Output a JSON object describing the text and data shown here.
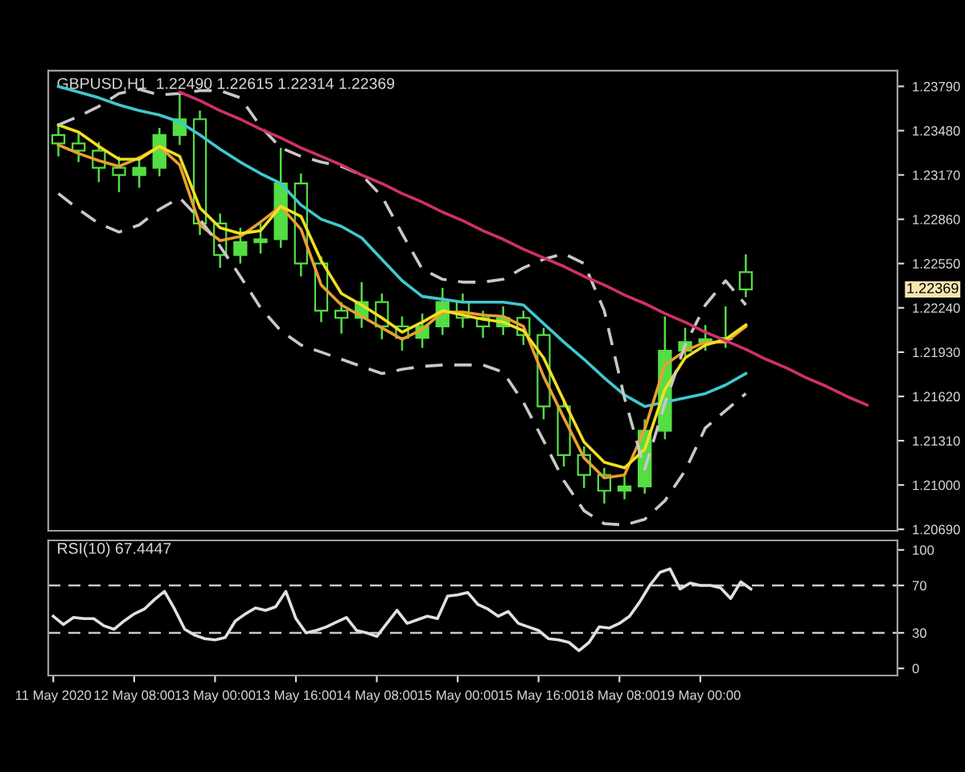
{
  "chart_data": [
    {
      "type": "candlestick",
      "title": "GBPUSD,H1  1.22490 1.22615 1.22314 1.22369",
      "categories": [
        null,
        null,
        null,
        null,
        null,
        null,
        null,
        null,
        null,
        null,
        null,
        null,
        null,
        null,
        null,
        null,
        null,
        null,
        null,
        null,
        null,
        null,
        null,
        null,
        null,
        null,
        null,
        null,
        null,
        null,
        null,
        null,
        null,
        null,
        null,
        null,
        null,
        null,
        null,
        null,
        null,
        null
      ],
      "ylim": [
        1.2068,
        1.239
      ],
      "yticks": [
        {
          "value": 1.2379,
          "label": "1.23790"
        },
        {
          "value": 1.2348,
          "label": "1.23480"
        },
        {
          "value": 1.2317,
          "label": "1.23170"
        },
        {
          "value": 1.2286,
          "label": "1.22860"
        },
        {
          "value": 1.2255,
          "label": "1.22550"
        },
        {
          "value": 1.2224,
          "label": "1.22240"
        },
        {
          "value": 1.2193,
          "label": "1.21930"
        },
        {
          "value": 1.2162,
          "label": "1.21620"
        },
        {
          "value": 1.2131,
          "label": "1.21310"
        },
        {
          "value": 1.21,
          "label": "1.21000"
        },
        {
          "value": 1.2069,
          "label": "1.20690"
        }
      ],
      "tick_labels": "y",
      "grid": false,
      "legend": false,
      "annotations": [
        "1.22369"
      ],
      "series": [
        {
          "color": "#55dd44",
          "ohlc": [
            [
              1.2345,
              1.2352,
              1.233,
              1.2339
            ],
            [
              1.2339,
              1.2346,
              1.2326,
              1.2334
            ],
            [
              1.2334,
              1.234,
              1.2312,
              1.2322
            ],
            [
              1.2322,
              1.233,
              1.2305,
              1.2317
            ],
            [
              1.2317,
              1.233,
              1.2308,
              1.2322
            ],
            [
              1.2322,
              1.235,
              1.2316,
              1.2345
            ],
            [
              1.2345,
              1.2373,
              1.2338,
              1.2356
            ],
            [
              1.2356,
              1.2362,
              1.2275,
              1.2283
            ],
            [
              1.2283,
              1.229,
              1.2252,
              1.2261
            ],
            [
              1.2261,
              1.228,
              1.2255,
              1.227
            ],
            [
              1.227,
              1.2283,
              1.2262,
              1.2272
            ],
            [
              1.2272,
              1.2336,
              1.2266,
              1.2311
            ],
            [
              1.2311,
              1.2318,
              1.2246,
              1.2255
            ],
            [
              1.2255,
              1.226,
              1.2214,
              1.2222
            ],
            [
              1.2222,
              1.2228,
              1.2206,
              1.2217
            ],
            [
              1.2217,
              1.2242,
              1.221,
              1.2228
            ],
            [
              1.2228,
              1.2234,
              1.2202,
              1.2211
            ],
            [
              1.2211,
              1.2218,
              1.2194,
              1.2203
            ],
            [
              1.2203,
              1.222,
              1.2196,
              1.2211
            ],
            [
              1.2211,
              1.2238,
              1.2205,
              1.2228
            ],
            [
              1.2228,
              1.2234,
              1.221,
              1.2217
            ],
            [
              1.2217,
              1.2222,
              1.2203,
              1.2211
            ],
            [
              1.2211,
              1.2225,
              1.2205,
              1.2217
            ],
            [
              1.2217,
              1.2222,
              1.2198,
              1.2205
            ],
            [
              1.2205,
              1.221,
              1.2146,
              1.2155
            ],
            [
              1.2155,
              1.216,
              1.2113,
              1.2121
            ],
            [
              1.2121,
              1.2127,
              1.2098,
              1.2107
            ],
            [
              1.2107,
              1.2112,
              1.2087,
              1.2096
            ],
            [
              1.2096,
              1.2106,
              1.209,
              1.2099
            ],
            [
              1.2099,
              1.2146,
              1.2094,
              1.2138
            ],
            [
              1.2138,
              1.2218,
              1.2132,
              1.2194
            ],
            [
              1.2194,
              1.221,
              1.219,
              1.22
            ],
            [
              1.22,
              1.2212,
              1.2194,
              1.2202
            ],
            [
              1.2202,
              1.2225,
              1.2196,
              1.2203
            ],
            [
              1.2249,
              1.22615,
              1.22314,
              1.22369
            ],
            null,
            null,
            null,
            null,
            null,
            null,
            null
          ]
        },
        {
          "type": "line",
          "color": "#40c8d0",
          "line_style": "solid",
          "values": [
            1.2379,
            1.2375,
            1.2371,
            1.2366,
            1.2362,
            1.2359,
            1.2354,
            1.2345,
            1.2335,
            1.2326,
            1.2318,
            1.2311,
            1.2296,
            1.2286,
            1.2281,
            1.2273,
            1.2258,
            1.2243,
            1.2232,
            1.223,
            1.2228,
            1.2228,
            1.2228,
            1.2226,
            1.2213,
            1.22,
            1.2188,
            1.2175,
            1.2163,
            1.2155,
            1.2158,
            1.2161,
            1.2164,
            1.217,
            1.2178,
            null,
            null,
            null,
            null,
            null,
            null,
            null
          ]
        },
        {
          "type": "line",
          "color": "#e8a030",
          "line_style": "solid",
          "values": [
            1.2338,
            1.2332,
            1.2327,
            1.2323,
            1.2329,
            1.2337,
            1.2324,
            1.2282,
            1.2271,
            1.2274,
            1.2284,
            1.2295,
            1.2279,
            1.224,
            1.2226,
            1.2218,
            1.221,
            1.2202,
            1.2209,
            1.2221,
            1.2221,
            1.2219,
            1.2218,
            1.2211,
            1.2176,
            1.2147,
            1.2119,
            1.2105,
            1.2107,
            1.2139,
            1.2184,
            1.2194,
            1.22,
            1.22,
            1.2211,
            null,
            null,
            null,
            null,
            null,
            null,
            null
          ]
        },
        {
          "type": "line",
          "color": "#f0e020",
          "line_style": "solid",
          "values": [
            1.2352,
            1.2347,
            1.2337,
            1.2328,
            1.2328,
            1.2337,
            1.233,
            1.2294,
            1.228,
            1.2276,
            1.2278,
            1.2295,
            1.2288,
            1.2257,
            1.2234,
            1.2226,
            1.2217,
            1.2207,
            1.2214,
            1.2222,
            1.2219,
            1.2216,
            1.2214,
            1.2208,
            1.2189,
            1.2159,
            1.213,
            1.2116,
            1.2112,
            1.2125,
            1.2167,
            1.2189,
            1.2198,
            1.2202,
            1.2212,
            null,
            null,
            null,
            null,
            null,
            null,
            null
          ]
        },
        {
          "type": "line",
          "color": "#c8c8c8",
          "line_style": "dashed",
          "values": [
            1.2352,
            1.2358,
            1.2365,
            1.2374,
            1.2377,
            1.2373,
            1.2374,
            1.2376,
            1.2376,
            1.2371,
            1.2351,
            1.2336,
            1.233,
            1.2326,
            1.2323,
            1.2317,
            1.2302,
            1.2276,
            1.2251,
            1.2244,
            1.2242,
            1.2242,
            1.2244,
            1.2252,
            1.2258,
            1.2262,
            1.2255,
            1.2222,
            1.2161,
            1.2111,
            1.2157,
            1.2198,
            1.2226,
            1.2243,
            1.2226,
            null,
            null,
            null,
            null,
            null,
            null,
            null
          ]
        },
        {
          "type": "line",
          "color": "#c8c8c8",
          "line_style": "dashed",
          "values": [
            1.2304,
            1.2293,
            1.2283,
            1.2277,
            1.2282,
            1.2293,
            1.2301,
            1.2286,
            1.2267,
            1.2246,
            1.2224,
            1.2208,
            1.2198,
            1.2193,
            1.2188,
            1.2183,
            1.2178,
            1.2181,
            1.2183,
            1.2184,
            1.2184,
            1.2184,
            1.2179,
            1.2158,
            1.2131,
            1.2103,
            1.2082,
            1.2073,
            1.2072,
            1.2076,
            1.2089,
            1.211,
            1.214,
            1.2152,
            1.2164,
            null,
            null,
            null,
            null,
            null,
            null,
            null
          ]
        },
        {
          "type": "line",
          "color": "#d0306a",
          "line_style": "solid",
          "values": [
            null,
            null,
            null,
            null,
            null,
            null,
            1.2375,
            1.2369,
            1.2362,
            1.2356,
            1.2349,
            1.2343,
            1.2336,
            1.233,
            1.2324,
            1.2317,
            1.2311,
            1.2304,
            1.2298,
            1.2291,
            1.2285,
            1.2278,
            1.2272,
            1.2265,
            1.2259,
            1.2253,
            1.2246,
            1.224,
            1.2233,
            1.2227,
            1.222,
            1.2214,
            1.2207,
            1.2201,
            1.2195,
            1.2188,
            1.2182,
            1.2175,
            1.2169,
            1.2162,
            1.2156,
            null
          ]
        }
      ]
    },
    {
      "type": "line",
      "title": "RSI(10) 67.4447",
      "categories": [
        "11 May 2020",
        null,
        null,
        null,
        null,
        null,
        null,
        null,
        "12 May 08:00",
        null,
        null,
        null,
        null,
        null,
        null,
        null,
        "13 May 00:00",
        null,
        null,
        null,
        null,
        null,
        null,
        null,
        "13 May 16:00",
        null,
        null,
        null,
        null,
        null,
        null,
        null,
        "14 May 08:00",
        null,
        null,
        null,
        null,
        null,
        null,
        null,
        "15 May 00:00",
        null,
        null,
        null,
        null,
        null,
        null,
        null,
        "15 May 16:00",
        null,
        null,
        null,
        null,
        null,
        null,
        null,
        "18 May 08:00",
        null,
        null,
        null,
        null,
        null,
        null,
        null,
        "19 May 00:00",
        null,
        null,
        null,
        null,
        null,
        null,
        null,
        null,
        null,
        null,
        null,
        null,
        null,
        null,
        null,
        null,
        null,
        null,
        null
      ],
      "ylim": [
        -6,
        108
      ],
      "yticks": [
        0,
        30,
        70,
        100
      ],
      "grid": false,
      "legend": false,
      "ref_lines": [
        {
          "axis": "y",
          "value": 30,
          "line_style": "dashed",
          "color": "#c8c8c8"
        },
        {
          "axis": "y",
          "value": 70,
          "line_style": "dashed",
          "color": "#c8c8c8"
        }
      ],
      "series": [
        {
          "color": "#e0e0e0",
          "line_style": "solid",
          "values": [
            44,
            37,
            43,
            42,
            42,
            36,
            33,
            40,
            46,
            50,
            58,
            65,
            50,
            33,
            28,
            25,
            24,
            26,
            40,
            46,
            51,
            49,
            52,
            65,
            42,
            30,
            32,
            35,
            39,
            43,
            32,
            30,
            27,
            38,
            49,
            38,
            41,
            44,
            42,
            61,
            62,
            64,
            54,
            50,
            44,
            48,
            38,
            35,
            32,
            25,
            24,
            22,
            15,
            22,
            35,
            34,
            38,
            44,
            56,
            70,
            81,
            84,
            67,
            72,
            70,
            70,
            68,
            59,
            73,
            67,
            null,
            null,
            null,
            null,
            null,
            null,
            null,
            null,
            null,
            null,
            null,
            null,
            null,
            null
          ]
        }
      ]
    }
  ]
}
